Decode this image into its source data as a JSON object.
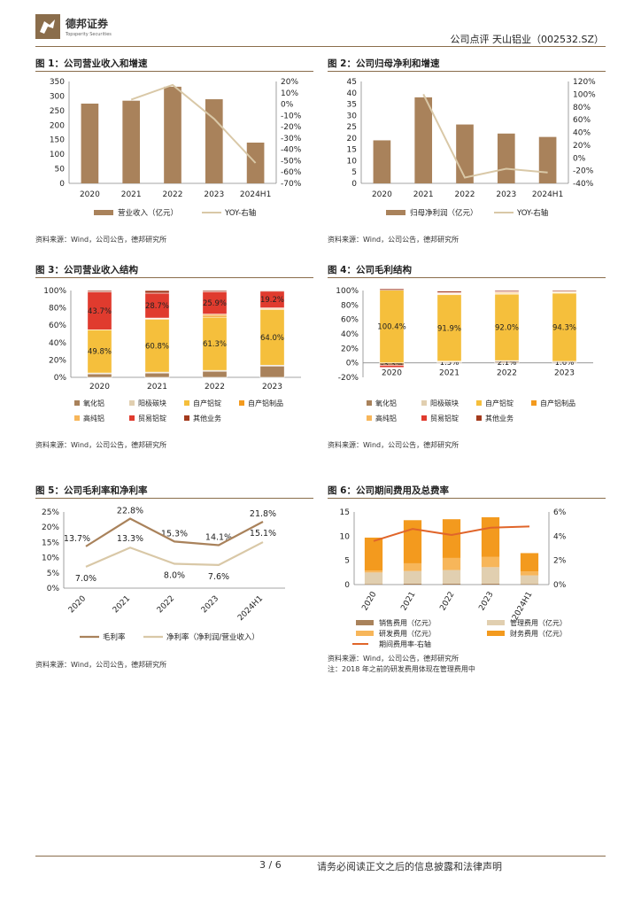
{
  "header": {
    "brand": "德邦证券",
    "brand_en": "Topsperity Securities",
    "right": "公司点评  天山铝业（002532.SZ）"
  },
  "footer": {
    "page": "3 / 6",
    "disclaimer": "请务必阅读正文之后的信息披露和法律声明"
  },
  "figures": [
    {
      "title": "图 1：公司营业收入和增速",
      "source": "资料来源：Wind，公司公告，德邦研究所"
    },
    {
      "title": "图 2：公司归母净利和增速",
      "source": "资料来源：Wind，公司公告，德邦研究所"
    },
    {
      "title": "图 3：公司营业收入结构",
      "source": "资料来源：Wind，公司公告，德邦研究所"
    },
    {
      "title": "图 4：公司毛利结构",
      "source": "资料来源：Wind，公司公告，德邦研究所"
    },
    {
      "title": "图 5：公司毛利率和净利率",
      "source": "资料来源：Wind，公司公告，德邦研究所"
    },
    {
      "title": "图 6：公司期间费用及总费率",
      "source": "资料来源：Wind，公司公告，德邦研究所",
      "note": "注：2018 年之前的研发费用体现在管理费用中"
    }
  ],
  "colors": {
    "brown": "#a9825b",
    "tan": "#d9c8a7",
    "red": "#e03b2e",
    "orange": "#f39a1e",
    "yellow": "#f5bf3c",
    "darkred": "#a33a1d",
    "lightorange": "#f7b65a",
    "beige": "#e1cfb0",
    "line_orange": "#e0652a"
  },
  "chart_data": [
    {
      "type": "bar",
      "categories": [
        "2020",
        "2021",
        "2022",
        "2023",
        "2024H1"
      ],
      "series": [
        {
          "name": "营业收入（亿元）",
          "values": [
            274,
            284,
            332,
            289,
            140
          ]
        },
        {
          "name": "YOY-右轴",
          "values": [
            null,
            4,
            17,
            -13,
            -52
          ]
        }
      ],
      "ylim": [
        0,
        350
      ],
      "yticks": [
        "0",
        "50",
        "100",
        "150",
        "200",
        "250",
        "300",
        "350"
      ],
      "y2lim": [
        -70,
        20
      ],
      "y2ticks": [
        "20%",
        "10%",
        "0%",
        "-10%",
        "-20%",
        "-30%",
        "-40%",
        "-50%",
        "-60%",
        "-70%"
      ],
      "legend": "bottom"
    },
    {
      "type": "bar",
      "categories": [
        "2020",
        "2021",
        "2022",
        "2023",
        "2024H1"
      ],
      "series": [
        {
          "name": "归母净利润（亿元）",
          "values": [
            19,
            38,
            26,
            22,
            20.5
          ]
        },
        {
          "name": "YOY-右轴",
          "values": [
            null,
            100,
            -31,
            -17,
            -23
          ]
        }
      ],
      "ylim": [
        0,
        45
      ],
      "yticks": [
        "0",
        "5",
        "10",
        "15",
        "20",
        "25",
        "30",
        "35",
        "40",
        "45"
      ],
      "y2lim": [
        -40,
        120
      ],
      "y2ticks": [
        "120%",
        "100%",
        "80%",
        "60%",
        "40%",
        "20%",
        "0%",
        "-20%",
        "-40%"
      ],
      "legend": "bottom"
    },
    {
      "type": "bar",
      "categories": [
        "2020",
        "2021",
        "2022",
        "2023"
      ],
      "stacked": true,
      "series": [
        {
          "name": "氧化铝",
          "values": [
            4,
            5,
            7,
            13
          ]
        },
        {
          "name": "阳极碳块",
          "values": [
            1,
            1,
            1,
            1
          ]
        },
        {
          "name": "自产铝锭",
          "values": [
            49.8,
            60.8,
            61.3,
            64.0
          ]
        },
        {
          "name": "自产铝制品",
          "values": [
            0,
            1,
            2,
            1
          ]
        },
        {
          "name": "高纯铝",
          "values": [
            0,
            0.5,
            1.5,
            1
          ]
        },
        {
          "name": "贸易铝锭",
          "values": [
            43.7,
            28.7,
            25.9,
            19.2
          ]
        },
        {
          "name": "其他业务",
          "values": [
            1.5,
            3,
            1.3,
            0.8
          ]
        }
      ],
      "data_labels": {
        "自产铝锭": [
          "49.8%",
          "60.8%",
          "61.3%",
          "64.0%"
        ],
        "贸易铝锭": [
          "43.7%",
          "28.7%",
          "25.9%",
          "19.2%"
        ]
      },
      "ylim": [
        0,
        100
      ],
      "yticks": [
        "0%",
        "20%",
        "40%",
        "60%",
        "80%",
        "100%"
      ],
      "legend": "bottom"
    },
    {
      "type": "bar",
      "categories": [
        "2020",
        "2021",
        "2022",
        "2023"
      ],
      "stacked": true,
      "series": [
        {
          "name": "氧化铝",
          "values": [
            -3.3,
            1.3,
            2.1,
            1.6
          ]
        },
        {
          "name": "阳极碳块",
          "values": [
            0,
            1,
            1,
            0.5
          ]
        },
        {
          "name": "自产铝锭",
          "values": [
            100.4,
            91.9,
            92.0,
            94.3
          ]
        },
        {
          "name": "自产铝制品",
          "values": [
            0,
            1,
            1,
            1
          ]
        },
        {
          "name": "高纯铝",
          "values": [
            0,
            1,
            1.5,
            1
          ]
        },
        {
          "name": "贸易铝锭",
          "values": [
            -3,
            1,
            1,
            0.5
          ]
        },
        {
          "name": "其他业务",
          "values": [
            2,
            2,
            1.5,
            1.5
          ]
        }
      ],
      "data_labels": {
        "自产铝锭": [
          "100.4%",
          "91.9%",
          "92.0%",
          "94.3%"
        ],
        "氧化铝": [
          "-3.3%",
          "1.3%",
          "2.1%",
          "1.6%"
        ]
      },
      "ylim": [
        -20,
        100
      ],
      "yticks": [
        "-20%",
        "0%",
        "20%",
        "40%",
        "60%",
        "80%",
        "100%"
      ],
      "legend": "bottom"
    },
    {
      "type": "line",
      "categories": [
        "2020",
        "2021",
        "2022",
        "2023",
        "2024H1"
      ],
      "series": [
        {
          "name": "毛利率",
          "values": [
            13.7,
            22.8,
            15.3,
            14.1,
            21.8
          ],
          "labels": [
            "13.7%",
            "22.8%",
            "15.3%",
            "14.1%",
            "21.8%"
          ]
        },
        {
          "name": "净利率（净利润/营业收入）",
          "values": [
            7.0,
            13.3,
            8.0,
            7.6,
            15.1
          ],
          "labels": [
            "7.0%",
            "13.3%",
            "8.0%",
            "7.6%",
            "15.1%"
          ]
        }
      ],
      "ylim": [
        0,
        25
      ],
      "yticks": [
        "0%",
        "5%",
        "10%",
        "15%",
        "20%",
        "25%"
      ],
      "legend": "bottom"
    },
    {
      "type": "bar",
      "categories": [
        "2020",
        "2021",
        "2022",
        "2023",
        "2024H1"
      ],
      "stacked": true,
      "series": [
        {
          "name": "销售费用（亿元）",
          "values": [
            0.1,
            0.2,
            0.2,
            0.2,
            0.1
          ]
        },
        {
          "name": "管理费用（亿元）",
          "values": [
            2.4,
            2.6,
            2.8,
            3.4,
            1.8
          ]
        },
        {
          "name": "研发费用（亿元）",
          "values": [
            0.4,
            1.6,
            2.5,
            2.1,
            0.8
          ]
        },
        {
          "name": "财务费用（亿元）",
          "values": [
            6.8,
            8.9,
            8.0,
            8.2,
            3.8
          ]
        },
        {
          "name": "期间费用率-右轴",
          "values": [
            3.6,
            4.6,
            4.1,
            4.7,
            4.8
          ]
        }
      ],
      "ylim": [
        0,
        15
      ],
      "yticks": [
        "0",
        "5",
        "10",
        "15"
      ],
      "y2lim": [
        0,
        6
      ],
      "y2ticks": [
        "0%",
        "2%",
        "4%",
        "6%"
      ],
      "legend": "bottom"
    }
  ]
}
